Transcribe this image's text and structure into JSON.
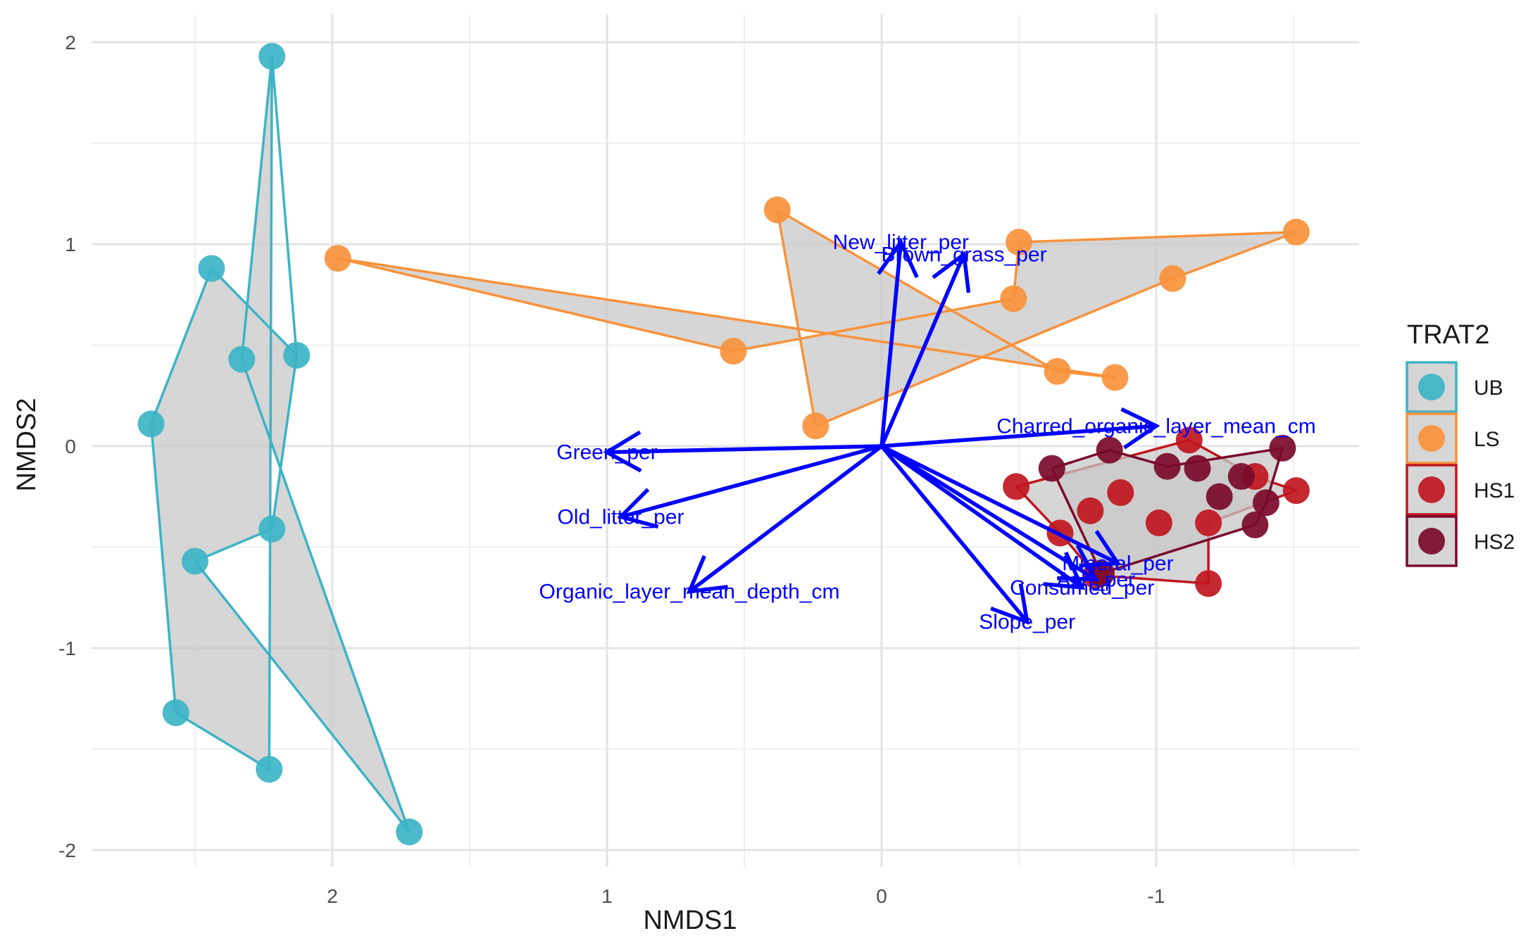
{
  "chart_data": {
    "type": "scatter",
    "xlabel": "NMDS1",
    "ylabel": "NMDS2",
    "x_reversed": true,
    "xlim": [
      2.75,
      -1.75
    ],
    "ylim": [
      -2.1,
      2.05
    ],
    "x_ticks": [
      2,
      1,
      0,
      -1
    ],
    "x_tick_labels": [
      "2",
      "1",
      "0",
      "-1"
    ],
    "y_ticks": [
      -2,
      -1,
      0,
      1,
      2
    ],
    "y_tick_labels": [
      "-2",
      "-1",
      "0",
      "1",
      "2"
    ],
    "grid": true,
    "legend": {
      "title": "TRAT2",
      "position": "right",
      "entries": [
        "UB",
        "LS",
        "HS1",
        "HS2"
      ]
    },
    "hull_fill": "#c8c8c8",
    "series": [
      {
        "name": "UB",
        "color": "#3cb4c6",
        "points": [
          [
            2.22,
            1.93
          ],
          [
            2.44,
            0.88
          ],
          [
            2.33,
            0.43
          ],
          [
            2.13,
            0.45
          ],
          [
            2.66,
            0.11
          ],
          [
            2.22,
            -0.41
          ],
          [
            2.5,
            -0.57
          ],
          [
            2.57,
            -1.32
          ],
          [
            2.23,
            -1.6
          ],
          [
            1.72,
            -1.91
          ]
        ],
        "hull": [
          [
            2.22,
            1.93
          ],
          [
            2.13,
            0.45
          ],
          [
            2.22,
            -0.41
          ],
          [
            2.5,
            -0.57
          ],
          [
            1.72,
            -1.91
          ],
          [
            2.33,
            0.43
          ],
          [
            2.22,
            1.93
          ],
          [
            2.23,
            -1.6
          ],
          [
            2.57,
            -1.32
          ],
          [
            2.66,
            0.11
          ],
          [
            2.44,
            0.88
          ],
          [
            2.13,
            0.45
          ]
        ]
      },
      {
        "name": "LS",
        "color": "#f8923c",
        "points": [
          [
            1.98,
            0.93
          ],
          [
            0.38,
            1.17
          ],
          [
            -0.5,
            1.01
          ],
          [
            -0.48,
            0.73
          ],
          [
            0.54,
            0.47
          ],
          [
            0.24,
            0.1
          ],
          [
            -0.64,
            0.37
          ],
          [
            -0.85,
            0.34
          ],
          [
            -1.06,
            0.83
          ],
          [
            -1.51,
            1.06
          ]
        ],
        "hull": [
          [
            1.98,
            0.93
          ],
          [
            0.54,
            0.47
          ],
          [
            -0.48,
            0.73
          ],
          [
            -0.5,
            1.01
          ],
          [
            -1.51,
            1.06
          ],
          [
            -1.06,
            0.83
          ],
          [
            0.24,
            0.1
          ],
          [
            0.38,
            1.17
          ],
          [
            -0.64,
            0.37
          ],
          [
            -0.85,
            0.34
          ],
          [
            1.98,
            0.93
          ]
        ]
      },
      {
        "name": "HS1",
        "color": "#c0161e",
        "points": [
          [
            -0.49,
            -0.2
          ],
          [
            -0.65,
            -0.43
          ],
          [
            -0.76,
            -0.32
          ],
          [
            -0.87,
            -0.23
          ],
          [
            -1.01,
            -0.38
          ],
          [
            -1.12,
            0.03
          ],
          [
            -1.19,
            -0.38
          ],
          [
            -1.36,
            -0.15
          ],
          [
            -1.51,
            -0.22
          ],
          [
            -1.19,
            -0.68
          ],
          [
            -0.78,
            -0.64
          ]
        ],
        "hull": [
          [
            -0.49,
            -0.2
          ],
          [
            -0.65,
            -0.43
          ],
          [
            -0.78,
            -0.64
          ],
          [
            -1.19,
            -0.68
          ],
          [
            -1.19,
            -0.38
          ],
          [
            -1.51,
            -0.22
          ],
          [
            -1.36,
            -0.15
          ],
          [
            -1.12,
            0.03
          ],
          [
            -0.49,
            -0.2
          ]
        ]
      },
      {
        "name": "HS2",
        "color": "#7a0a2a",
        "points": [
          [
            -0.62,
            -0.11
          ],
          [
            -0.83,
            -0.02
          ],
          [
            -1.04,
            -0.1
          ],
          [
            -1.15,
            -0.11
          ],
          [
            -1.23,
            -0.25
          ],
          [
            -1.31,
            -0.15
          ],
          [
            -1.4,
            -0.28
          ],
          [
            -1.36,
            -0.39
          ],
          [
            -1.46,
            -0.01
          ],
          [
            -0.8,
            -0.63
          ]
        ],
        "hull": [
          [
            -0.62,
            -0.11
          ],
          [
            -0.83,
            -0.02
          ],
          [
            -1.04,
            -0.1
          ],
          [
            -1.46,
            -0.01
          ],
          [
            -1.4,
            -0.28
          ],
          [
            -1.36,
            -0.39
          ],
          [
            -0.8,
            -0.63
          ],
          [
            -0.62,
            -0.11
          ]
        ]
      }
    ],
    "vectors": {
      "color": "#0000ff",
      "items": [
        {
          "label": "New_litter_per",
          "x": -0.07,
          "y": 1.01
        },
        {
          "label": "Brown_grass_per",
          "x": -0.3,
          "y": 0.95
        },
        {
          "label": "Green_per",
          "x": 1.0,
          "y": -0.03
        },
        {
          "label": "Old_litter_per",
          "x": 0.95,
          "y": -0.35
        },
        {
          "label": "Organic_layer_mean_depth_cm",
          "x": 0.7,
          "y": -0.72
        },
        {
          "label": "Charred_organic_layer_mean_cm",
          "x": -1.0,
          "y": 0.1
        },
        {
          "label": "Mineral_per",
          "x": -0.86,
          "y": -0.58
        },
        {
          "label": "Ash_per",
          "x": -0.78,
          "y": -0.66
        },
        {
          "label": "Consumed_per",
          "x": -0.73,
          "y": -0.7
        },
        {
          "label": "Slope_per",
          "x": -0.53,
          "y": -0.87
        }
      ]
    }
  }
}
